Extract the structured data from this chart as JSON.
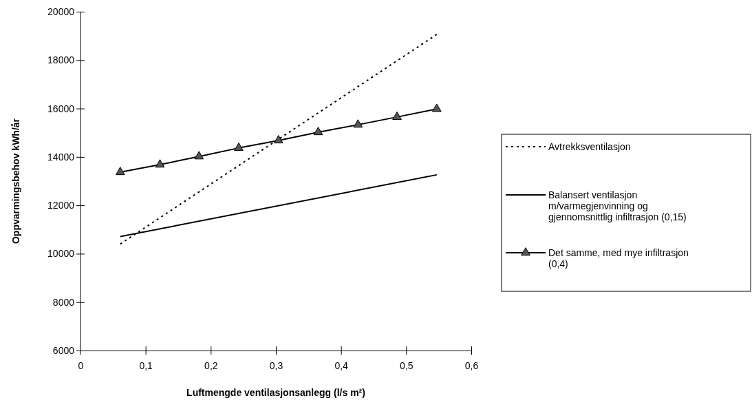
{
  "chart_data": {
    "type": "line",
    "xlabel": "Luftmengde ventilasjonsanlegg (l/s m²)",
    "ylabel": "Oppvarmingsbehov kWh/år",
    "xlim": [
      0,
      0.6
    ],
    "xticks": [
      {
        "value": 0,
        "label": "0"
      },
      {
        "value": 0.1,
        "label": "0,1"
      },
      {
        "value": 0.2,
        "label": "0,2"
      },
      {
        "value": 0.3,
        "label": "0,3"
      },
      {
        "value": 0.4,
        "label": "0,4"
      },
      {
        "value": 0.5,
        "label": "0,5"
      },
      {
        "value": 0.6,
        "label": "0,6"
      }
    ],
    "ylim": [
      6000,
      20000
    ],
    "yticks": [
      6000,
      8000,
      10000,
      12000,
      14000,
      16000,
      18000,
      20000
    ],
    "grid": false,
    "legend": "right",
    "series": [
      {
        "name": "Avtrekksventilasjon",
        "color": "#000000",
        "line_style": "dotted",
        "marker": "none",
        "x": [
          0.061,
          0.547
        ],
        "values": [
          10400,
          19060
        ]
      },
      {
        "name": "Balansert ventilasjon m/varmegjenvinning og gjennomsnittlig infiltrasjon (0,15)",
        "color": "#000000",
        "line_style": "solid",
        "marker": "none",
        "x": [
          0.061,
          0.547
        ],
        "values": [
          10710,
          13260
        ]
      },
      {
        "name": "Det samme, med mye infiltrasjon (0,4)",
        "color": "#000000",
        "line_style": "solid",
        "marker": "triangle",
        "x": [
          0.061,
          0.122,
          0.182,
          0.243,
          0.304,
          0.365,
          0.426,
          0.486,
          0.547
        ],
        "values": [
          13370,
          13680,
          14020,
          14370,
          14680,
          15020,
          15330,
          15650,
          15980
        ]
      }
    ]
  }
}
